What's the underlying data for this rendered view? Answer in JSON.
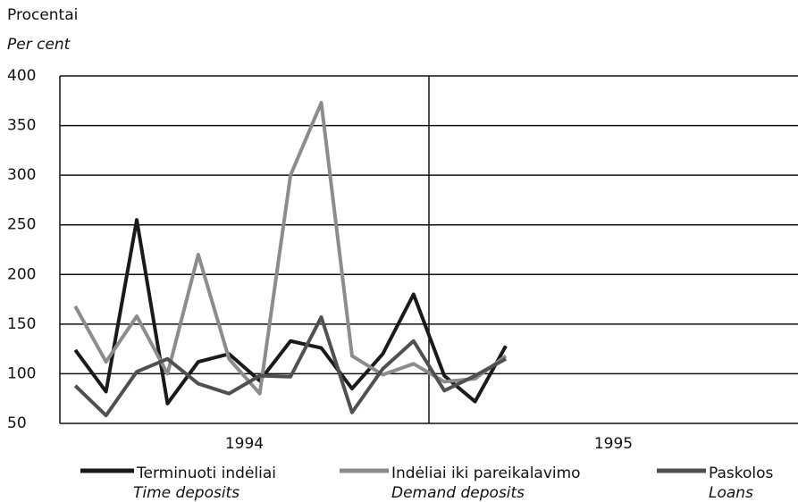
{
  "chart_data": {
    "type": "line",
    "y_label": "Procentai",
    "y_label_en": "Per cent",
    "categories": [
      null,
      null,
      null,
      null,
      null,
      null,
      null,
      null,
      null,
      null,
      null,
      null,
      null,
      null,
      null,
      null,
      null,
      null,
      null,
      null,
      null,
      null,
      null,
      null
    ],
    "year_labels": [
      "1994",
      "1995"
    ],
    "ylim": [
      50,
      400
    ],
    "yticks": [
      50,
      100,
      150,
      200,
      250,
      300,
      350,
      400
    ],
    "grid": true,
    "series": [
      {
        "name": "Terminuoti indėliai",
        "name_en": "Time deposits",
        "color": "#1a1a1a",
        "values": [
          124,
          82,
          255,
          70,
          112,
          120,
          93,
          133,
          126,
          85,
          120,
          180,
          98,
          72,
          128,
          null,
          null,
          null,
          null,
          null,
          null,
          null,
          null,
          null
        ]
      },
      {
        "name": "Indėliai iki pareikalavimo",
        "name_en": "Demand deposits",
        "color": "#8c8c8c",
        "values": [
          168,
          112,
          158,
          100,
          220,
          115,
          80,
          300,
          373,
          118,
          99,
          110,
          92,
          95,
          118,
          null,
          null,
          null,
          null,
          null,
          null,
          null,
          null,
          null
        ]
      },
      {
        "name": "Paskolos",
        "name_en": "Loans",
        "color": "#505050",
        "values": [
          88,
          58,
          102,
          115,
          90,
          80,
          98,
          97,
          157,
          61,
          105,
          133,
          83,
          98,
          115,
          null,
          null,
          null,
          null,
          null,
          null,
          null,
          null,
          null
        ]
      }
    ]
  }
}
